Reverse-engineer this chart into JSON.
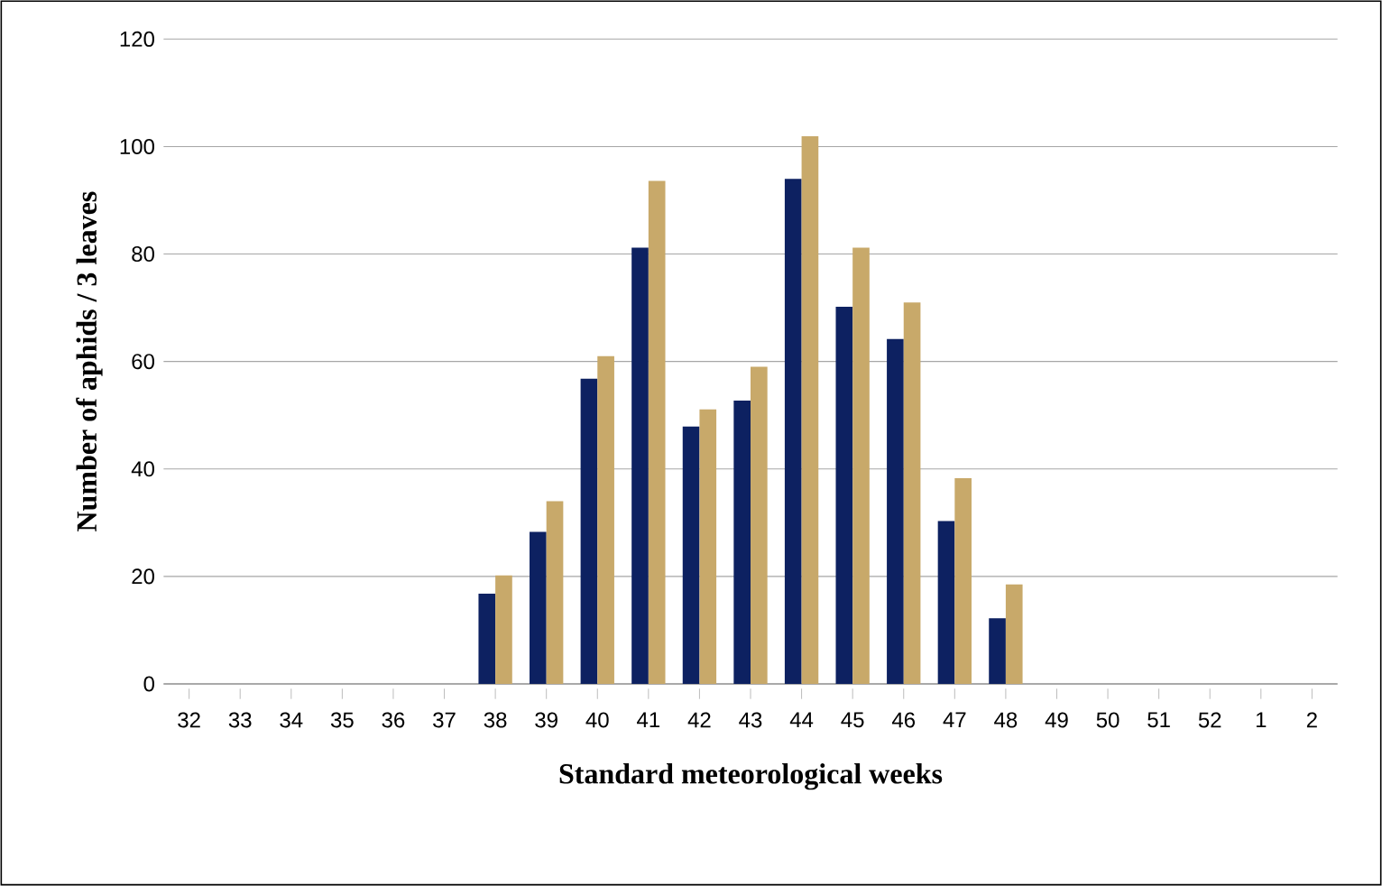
{
  "chart_data": {
    "type": "bar",
    "xlabel": "Standard meteorological weeks",
    "ylabel": "Number of aphids / 3 leaves",
    "categories": [
      "32",
      "33",
      "34",
      "35",
      "36",
      "37",
      "38",
      "39",
      "40",
      "41",
      "42",
      "43",
      "44",
      "45",
      "46",
      "47",
      "48",
      "49",
      "50",
      "51",
      "52",
      "1",
      "2"
    ],
    "series": [
      {
        "color": "#0d2161",
        "values": [
          0,
          0,
          0,
          0,
          0,
          0,
          16.8,
          28.3,
          56.8,
          81.2,
          47.9,
          52.7,
          94,
          70.2,
          64.2,
          30.3,
          12.2,
          0,
          0,
          0,
          0,
          0,
          0
        ]
      },
      {
        "color": "#c8a96a",
        "values": [
          0,
          0,
          0,
          0,
          0,
          0,
          20.2,
          34,
          61,
          93.6,
          51.1,
          59,
          101.9,
          81.2,
          71,
          38.3,
          18.5,
          0,
          0,
          0,
          0,
          0,
          0
        ]
      }
    ],
    "ylim": [
      0,
      120
    ],
    "yticks": [
      0,
      20,
      40,
      60,
      80,
      100,
      120
    ],
    "grid": "y"
  }
}
